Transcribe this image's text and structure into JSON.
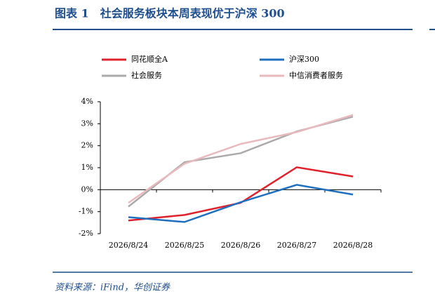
{
  "chart_data": {
    "type": "line",
    "title": "图表 1　社会服务板块本周表现优于沪深 300",
    "source": "资料来源：iFind，华创证券",
    "categories": [
      "2026/8/24",
      "2026/8/25",
      "2026/8/26",
      "2026/8/27",
      "2026/8/28"
    ],
    "series": [
      {
        "name": "同花顺全A",
        "color": "#e0202a",
        "values": [
          -1.4,
          -1.15,
          -0.6,
          1.02,
          0.6
        ]
      },
      {
        "name": "沪深300",
        "color": "#1f6fbf",
        "values": [
          -1.25,
          -1.47,
          -0.57,
          0.22,
          -0.22
        ]
      },
      {
        "name": "社会服务",
        "color": "#aaaaaa",
        "values": [
          -0.77,
          1.25,
          1.66,
          2.65,
          3.32
        ]
      },
      {
        "name": "中信消费者服务",
        "color": "#e8b9bd",
        "values": [
          -0.6,
          1.18,
          2.08,
          2.62,
          3.4
        ]
      }
    ],
    "ylim": [
      -2,
      4
    ],
    "yticks": [
      {
        "value": -2,
        "label": "-2%"
      },
      {
        "value": -1,
        "label": "-1%"
      },
      {
        "value": 0,
        "label": "0%"
      },
      {
        "value": 1,
        "label": "1%"
      },
      {
        "value": 2,
        "label": "2%"
      },
      {
        "value": 3,
        "label": "3%"
      },
      {
        "value": 4,
        "label": "4%"
      }
    ]
  }
}
